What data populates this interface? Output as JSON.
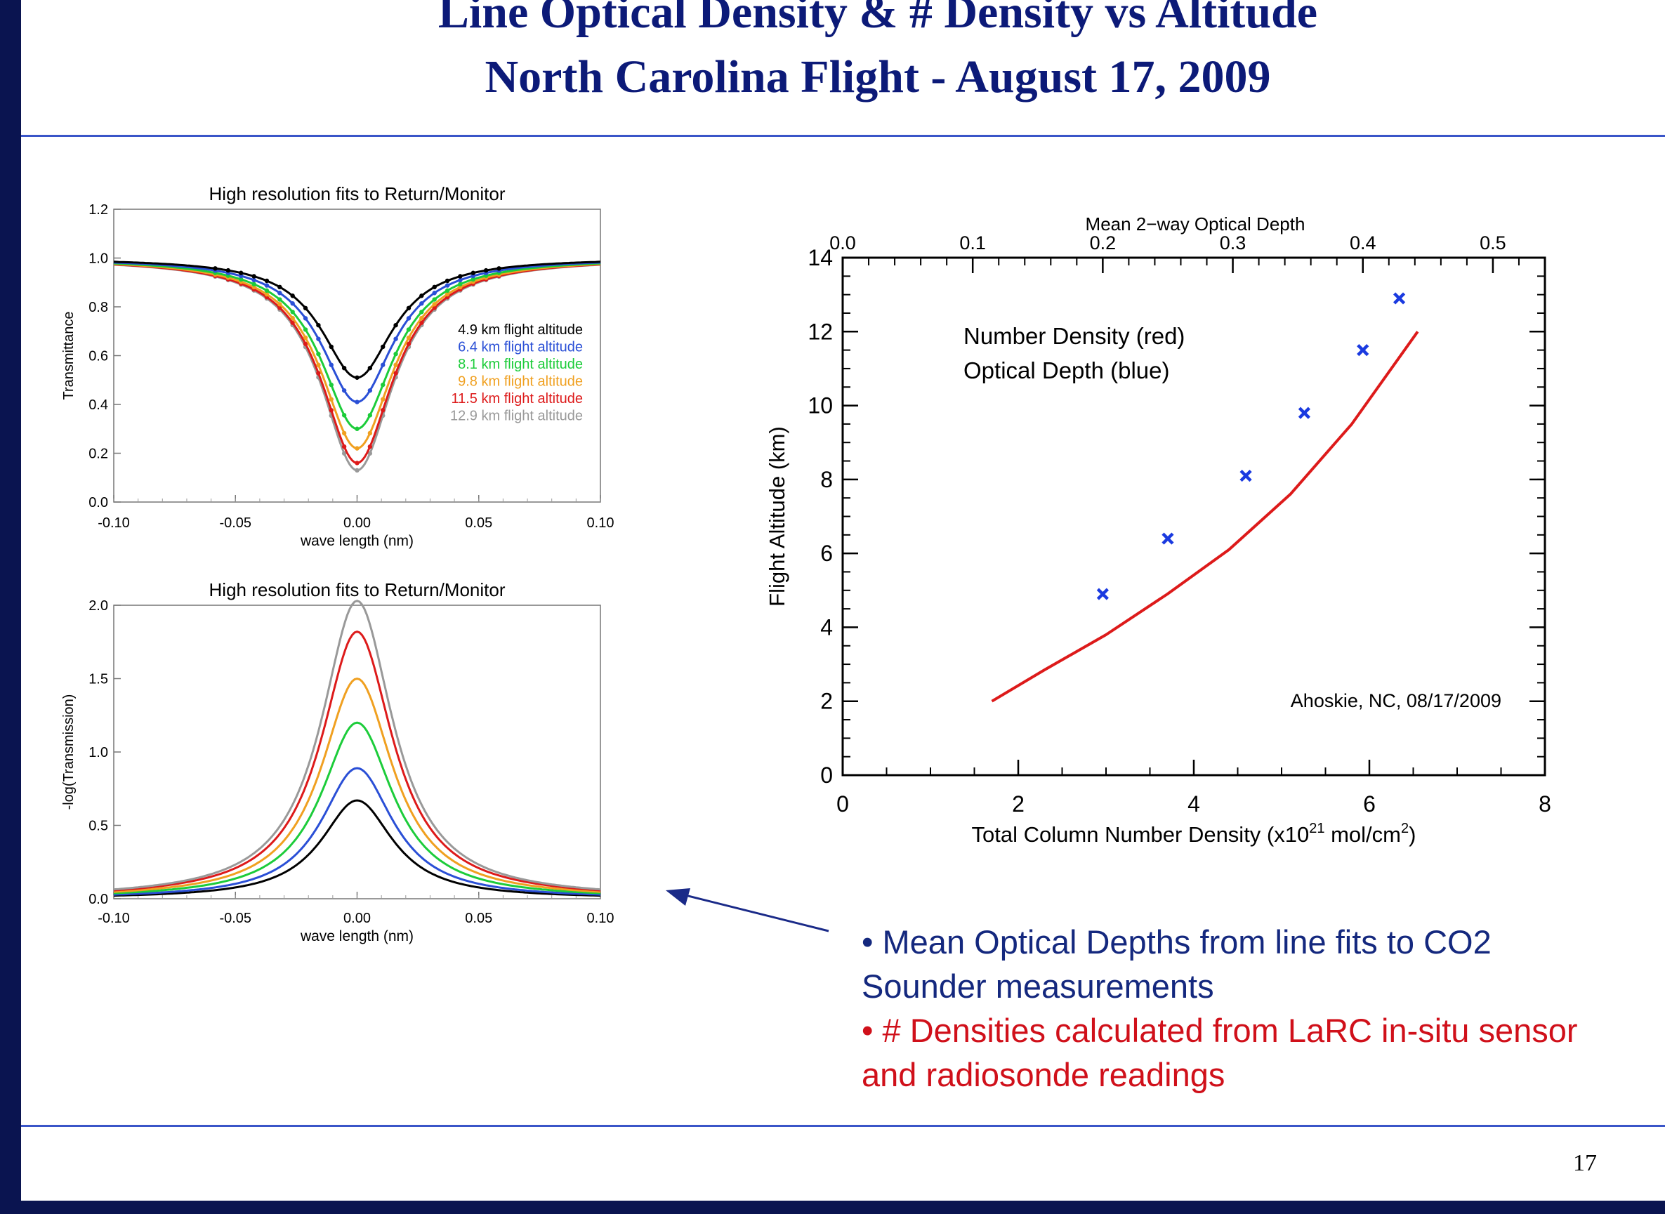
{
  "slide": {
    "title_line1": "Line Optical Density & # Density vs Altitude",
    "title_line2": "North Carolina Flight - August 17, 2009",
    "page_number": "17",
    "colors": {
      "frame": "#0a1450",
      "rule": "#3a55c8",
      "title": "#0c1a78",
      "bullet_blue": "#14287e",
      "bullet_red": "#d0101a"
    }
  },
  "bullets": [
    {
      "text": "• Mean Optical Depths from line fits to CO2 Sounder measurements",
      "color": "#14287e"
    },
    {
      "text": "• # Densities calculated from LaRC in-situ sensor and radiosonde readings",
      "color": "#d0101a"
    }
  ],
  "chart_data": [
    {
      "type": "line",
      "title": "High resolution fits to Return/Monitor",
      "xlabel": "wave length (nm)",
      "ylabel": "Transmittance",
      "xlim": [
        -0.1,
        0.1
      ],
      "ylim": [
        0,
        1.2
      ],
      "xticks": [
        "-0.10",
        "-0.05",
        "0.00",
        "0.05",
        "0.10"
      ],
      "yticks": [
        "0.0",
        "0.2",
        "0.4",
        "0.6",
        "0.8",
        "1.0",
        "1.2"
      ],
      "line_width_nm": 0.018,
      "legend_position": "right",
      "series": [
        {
          "name": "4.9  km flight altitude",
          "color": "#000000",
          "min_transmittance": 0.51
        },
        {
          "name": "6.4  km flight altitude",
          "color": "#2a4fd6",
          "min_transmittance": 0.41
        },
        {
          "name": "8.1  km flight altitude",
          "color": "#1ccc3a",
          "min_transmittance": 0.3
        },
        {
          "name": "9.8  km flight altitude",
          "color": "#f0a020",
          "min_transmittance": 0.22
        },
        {
          "name": "11.5  km flight altitude",
          "color": "#dd1a1a",
          "min_transmittance": 0.16
        },
        {
          "name": "12.9  km flight altitude",
          "color": "#999999",
          "min_transmittance": 0.13
        }
      ]
    },
    {
      "type": "line",
      "title": "High resolution fits to Return/Monitor",
      "xlabel": "wave length (nm)",
      "ylabel": "-log(Transmission)",
      "xlim": [
        -0.1,
        0.1
      ],
      "ylim": [
        0,
        2.0
      ],
      "xticks": [
        "-0.10",
        "-0.05",
        "0.00",
        "0.05",
        "0.10"
      ],
      "yticks": [
        "0.0",
        "0.5",
        "1.0",
        "1.5",
        "2.0"
      ],
      "line_width_nm": 0.018,
      "series": [
        {
          "color": "#000000",
          "peak": 0.67
        },
        {
          "color": "#2a4fd6",
          "peak": 0.89
        },
        {
          "color": "#1ccc3a",
          "peak": 1.2
        },
        {
          "color": "#f0a020",
          "peak": 1.5
        },
        {
          "color": "#dd1a1a",
          "peak": 1.82
        },
        {
          "color": "#999999",
          "peak": 2.03
        }
      ]
    },
    {
      "type": "scatter",
      "xlabel": "Total Column Number Density (x10",
      "xlabel_sup": "21",
      "xlabel_tail1": " mol/cm",
      "xlabel_sup2": "2",
      "xlabel_tail2": ")",
      "x2label": "Mean 2−way Optical Depth",
      "ylabel": "Flight Altitude (km)",
      "xlim": [
        0,
        8
      ],
      "ylim": [
        0,
        14
      ],
      "x2lim": [
        0,
        0.54
      ],
      "xticks": [
        0,
        2,
        4,
        6,
        8
      ],
      "yticks": [
        0,
        2,
        4,
        6,
        8,
        10,
        12,
        14
      ],
      "x2ticks": [
        "0.0",
        "0.1",
        "0.2",
        "0.3",
        "0.4",
        "0.5"
      ],
      "legend_lines": [
        "Number Density (red)",
        "Optical Depth (blue)"
      ],
      "annotation": "Ahoskie, NC, 08/17/2009",
      "number_density_curve": {
        "color": "#dd1a1a",
        "x": [
          1.7,
          2.3,
          3.0,
          3.7,
          4.4,
          5.1,
          5.8,
          6.55
        ],
        "y": [
          2.0,
          2.85,
          3.8,
          4.9,
          6.1,
          7.6,
          9.5,
          12.0
        ]
      },
      "optical_depth_points": {
        "color": "#1a3ae0",
        "x2": [
          0.2,
          0.25,
          0.31,
          0.355,
          0.4,
          0.428
        ],
        "y": [
          4.9,
          6.4,
          8.1,
          9.8,
          11.5,
          12.9
        ]
      }
    }
  ]
}
